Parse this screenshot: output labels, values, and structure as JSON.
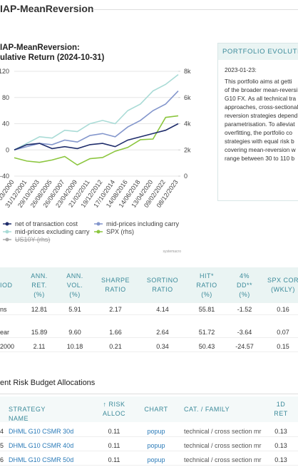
{
  "header": {
    "title": "IAP-MeanReversion"
  },
  "chart_data": {
    "type": "line",
    "title": [
      "IAP-MeanReversion:",
      "ulative Return (2024-10-31)"
    ],
    "categories": [
      "03/2000",
      "31/12/2001",
      "29/10/2003",
      "26/08/2005",
      "26/06/2007",
      "23/04/2009",
      "21/02/2011",
      "19/12/2012",
      "17/10/2014",
      "14/08/2016",
      "14/06/2018",
      "13/04/2020",
      "09/02/2022",
      "08/12/2023"
    ],
    "series": [
      {
        "name": "net of transaction cost",
        "color": "#1f2d6b",
        "values": [
          0,
          8,
          10,
          2,
          5,
          2,
          8,
          10,
          5,
          15,
          20,
          25,
          30,
          40
        ]
      },
      {
        "name": "mid-prices including carry",
        "color": "#8396cc",
        "values": [
          0,
          5,
          10,
          8,
          15,
          12,
          22,
          25,
          20,
          35,
          45,
          60,
          70,
          90
        ]
      },
      {
        "name": "mid-prices excluding carry",
        "color": "#a9dbd6",
        "values": [
          0,
          10,
          20,
          18,
          30,
          28,
          40,
          45,
          40,
          60,
          70,
          90,
          100,
          115
        ]
      },
      {
        "name": "SPX (rhs)",
        "color": "#8cc63f",
        "axis": "y2",
        "values": [
          1400,
          1150,
          1050,
          1230,
          1500,
          850,
          1330,
          1420,
          1900,
          2190,
          2780,
          2830,
          4480,
          4600
        ]
      },
      {
        "name": "US10Y (rhs)",
        "color": "#999999",
        "axis": "y2",
        "visible": false,
        "values": [
          null,
          null,
          null,
          null,
          null,
          null,
          null,
          null,
          null,
          null,
          null,
          null,
          null,
          null
        ]
      }
    ],
    "ylim": [
      -40,
      120
    ],
    "yticks": [
      -40,
      0,
      40,
      80,
      120
    ],
    "y2lim": [
      0,
      8000
    ],
    "y2ticks": [
      {
        "value": 0,
        "label": "0"
      },
      {
        "value": 2000,
        "label": "2k"
      },
      {
        "value": 4000,
        "label": "4k"
      },
      {
        "value": 6000,
        "label": "6k"
      },
      {
        "value": 8000,
        "label": "8k"
      }
    ],
    "grid": true,
    "credit": "systemacro"
  },
  "evolution": {
    "title": "PORTFOLIO EVOLUTIO",
    "date": "2023-01-23:",
    "lines": [
      "This portfolio aims at getti",
      "of the broader mean-reversi",
      "G10 FX. As all technical tra",
      "approaches, cross-sectional",
      "reversion strategies depend",
      "parametrisation. To alleviat",
      "overfitting, the portfolio co",
      "strategies with equal risk b",
      "covering mean-reversion w",
      "range between 30 to 110 b"
    ]
  },
  "stats": {
    "columns": [
      [
        "IOD"
      ],
      [
        "ANN.",
        "RET.",
        "(%)"
      ],
      [
        "ANN.",
        "VOL.",
        "(%)"
      ],
      [
        "SHARPE",
        "RATIO"
      ],
      [
        "SORTINO",
        "RATIO"
      ],
      [
        "HIT*",
        "RATIO",
        "(%)"
      ],
      [
        "4%",
        "DD**",
        "(%)"
      ],
      [
        "SPX COR",
        "(WKLY)"
      ]
    ],
    "rows": [
      [
        "ns",
        "12.81",
        "5.91",
        "2.17",
        "4.14",
        "55.81",
        "-1.52",
        "0.16"
      ],
      [
        "ear",
        "15.89",
        "9.60",
        "1.66",
        "2.64",
        "51.72",
        "-3.64",
        "0.07"
      ],
      [
        "2000",
        "2.11",
        "10.18",
        "0.21",
        "0.34",
        "50.43",
        "-24.57",
        "0.15"
      ]
    ]
  },
  "allocations": {
    "title": "ent Risk Budget Allocations",
    "columns": [
      [
        ""
      ],
      [
        "STRATEGY NAME"
      ],
      [
        "↑  RISK",
        "ALLOC"
      ],
      [
        "CHART"
      ],
      [
        "CAT. / FAMILY"
      ],
      [
        "1D",
        "RET"
      ]
    ],
    "rows": [
      [
        "4",
        "DHML G10 CSMR 30d",
        "0.11",
        "popup",
        "technical / cross section mr",
        "0.13"
      ],
      [
        "5",
        "DHML G10 CSMR 40d",
        "0.11",
        "popup",
        "technical / cross section mr",
        "0.13"
      ],
      [
        "6",
        "DHML G10 CSMR 50d",
        "0.11",
        "popup",
        "technical / cross section mr",
        "0.13"
      ]
    ]
  }
}
